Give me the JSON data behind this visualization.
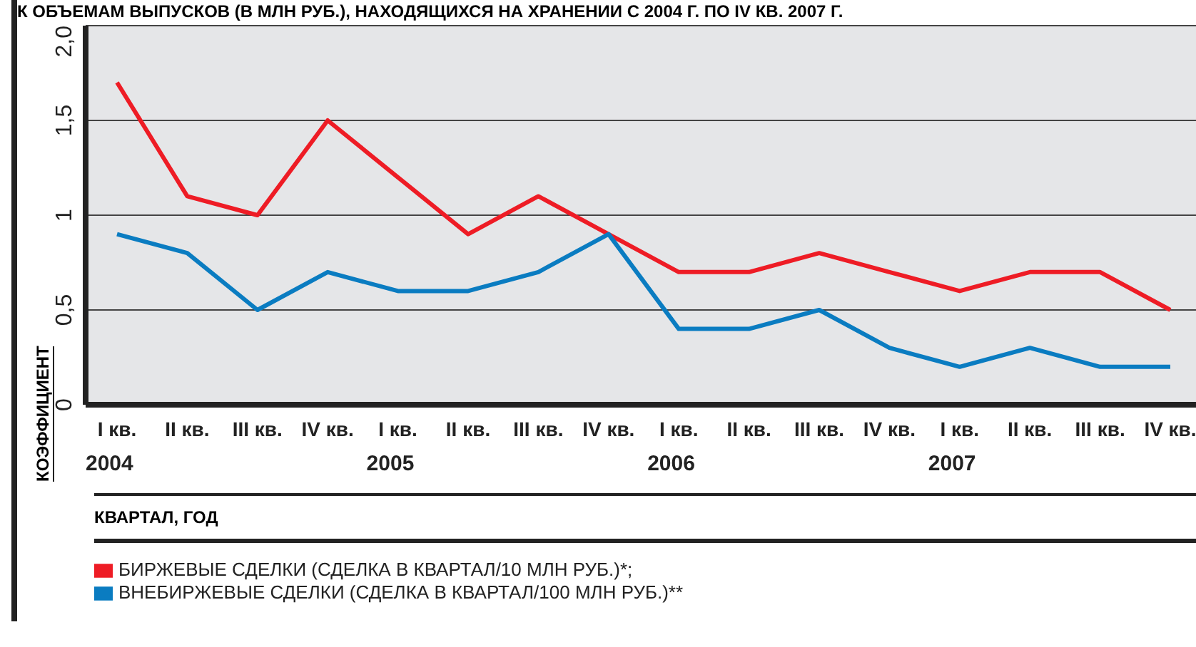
{
  "chart_data": {
    "type": "line",
    "title": "К ОБЪЕМАМ ВЫПУСКОВ (В МЛН РУБ.), НАХОДЯЩИХСЯ НА ХРАНЕНИИ С 2004 Г. ПО IV КВ. 2007 Г.",
    "categories": [
      "I кв.\n2004",
      "II кв.",
      "III кв.",
      "IV кв.",
      "I кв.\n2005",
      "II кв.",
      "III кв.",
      "IV кв.",
      "I кв.\n2006",
      "II кв.",
      "III кв.",
      "IV кв.",
      "I кв.\n2007",
      "II кв.",
      "III кв.",
      "IV кв."
    ],
    "series": [
      {
        "name": "БИРЖЕВЫЕ СДЕЛКИ (СДЕЛКА В КВАРТАЛ/10 МЛН РУБ.)*;",
        "color": "#ee1c25",
        "values": [
          1.7,
          1.1,
          1.0,
          1.5,
          1.2,
          0.9,
          1.1,
          0.9,
          0.7,
          0.7,
          0.8,
          0.7,
          0.6,
          0.7,
          0.7,
          0.5
        ]
      },
      {
        "name": "ВНЕБИРЖЕВЫЕ СДЕЛКИ (СДЕЛКА В КВАРТАЛ/100 МЛН РУБ.)**",
        "color": "#0a7cc1",
        "values": [
          0.9,
          0.8,
          0.5,
          0.7,
          0.6,
          0.6,
          0.7,
          0.9,
          0.4,
          0.4,
          0.5,
          0.3,
          0.2,
          0.3,
          0.2,
          0.2
        ]
      }
    ],
    "ylim": [
      0,
      2
    ],
    "yticks": [
      0,
      {
        "value": 0.5,
        "label": "0,5"
      },
      1,
      {
        "value": 1.5,
        "label": "1,5"
      },
      {
        "value": 2,
        "label": "2,0"
      }
    ],
    "ylabel": "КОЭФФИЦИЕНТ",
    "xlabel": "КВАРТАЛ, ГОД",
    "grid": "y",
    "legend": "bottom",
    "marker": "none",
    "line_style": "solid"
  }
}
